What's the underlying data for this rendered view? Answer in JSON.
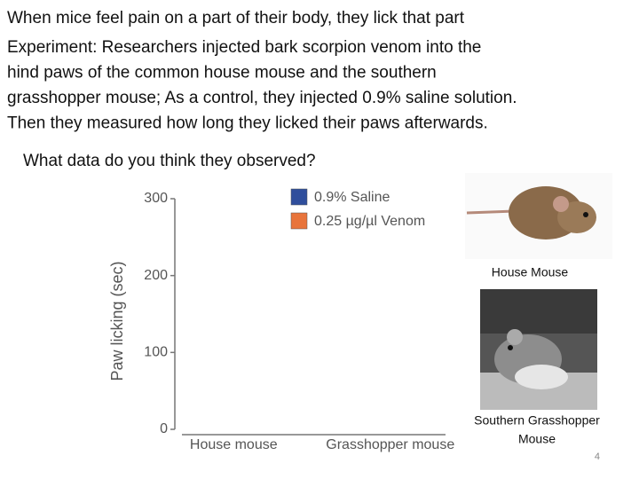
{
  "slide": {
    "heading": "When mice feel pain on a part of their body, they lick that part",
    "experiment_lines": [
      "Experiment: Researchers injected bark scorpion venom into the",
      "hind paws of the common house mouse and the southern",
      "grasshopper mouse; As a control, they injected 0.9% saline solution.",
      "Then they measured how long they licked their paws afterwards."
    ],
    "question": "What data do you think they observed?",
    "images": [
      {
        "caption_lines": [
          "House Mouse"
        ]
      },
      {
        "caption_lines": [
          "Southern Grasshopper",
          "Mouse"
        ]
      }
    ],
    "page_number": "4"
  },
  "chart_data": {
    "type": "bar",
    "y_label": "Paw licking (sec)",
    "categories": [
      "House mouse",
      "Grasshopper mouse"
    ],
    "series": [
      {
        "name": "0.9% Saline",
        "color": "#2f4e9c"
      },
      {
        "name": "0.25 µg/µl Venom",
        "color": "#e8743b"
      }
    ],
    "ylim": [
      0,
      300
    ],
    "yticks": [
      0,
      100,
      200,
      300
    ]
  }
}
